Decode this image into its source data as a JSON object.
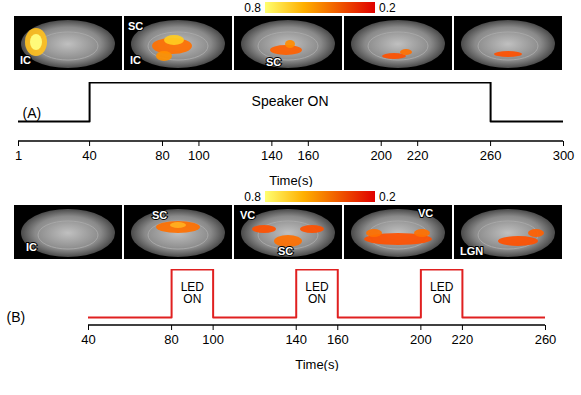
{
  "chart_data": [
    {
      "type": "line",
      "panel": "(A)",
      "x": [
        1,
        40,
        40,
        260,
        260,
        300
      ],
      "values": [
        0,
        0,
        1,
        1,
        0,
        0
      ],
      "color": "#000000",
      "xlim": [
        1,
        300
      ],
      "xticks": [
        1,
        40,
        80,
        100,
        140,
        160,
        200,
        220,
        260,
        300
      ],
      "ylim": [
        0,
        1
      ],
      "x_label": "Time(s)",
      "tick_labels": "x",
      "annotations": [
        {
          "text": "Speaker ON",
          "x": 150
        }
      ],
      "slice_labels": [
        [
          "IC"
        ],
        [
          "SC",
          "IC"
        ],
        [
          "SC"
        ],
        [],
        []
      ],
      "colorbar": {
        "range": [
          0.8,
          0.2
        ],
        "ticks": [
          0.8,
          0.2
        ]
      }
    },
    {
      "type": "line",
      "panel": "(B)",
      "x": [
        40,
        80,
        80,
        100,
        100,
        140,
        140,
        160,
        160,
        200,
        200,
        220,
        220,
        260
      ],
      "values": [
        0,
        0,
        1,
        1,
        0,
        0,
        1,
        1,
        0,
        0,
        1,
        1,
        0,
        0
      ],
      "color": "#e02020",
      "xlim": [
        40,
        260
      ],
      "xticks": [
        40,
        80,
        100,
        140,
        160,
        200,
        220,
        260
      ],
      "ylim": [
        0,
        1
      ],
      "x_label": "Time(s)",
      "tick_labels": "x",
      "annotations": [
        {
          "text": "LED ON",
          "x": 90
        },
        {
          "text": "LED ON",
          "x": 150
        },
        {
          "text": "LED ON",
          "x": 210
        }
      ],
      "slice_labels": [
        [
          "IC"
        ],
        [
          "SC"
        ],
        [
          "VC",
          "SC"
        ],
        [
          "VC"
        ],
        [
          "LGN"
        ]
      ],
      "colorbar": {
        "range": [
          0.8,
          0.2
        ],
        "ticks": [
          0.8,
          0.2
        ]
      }
    }
  ]
}
